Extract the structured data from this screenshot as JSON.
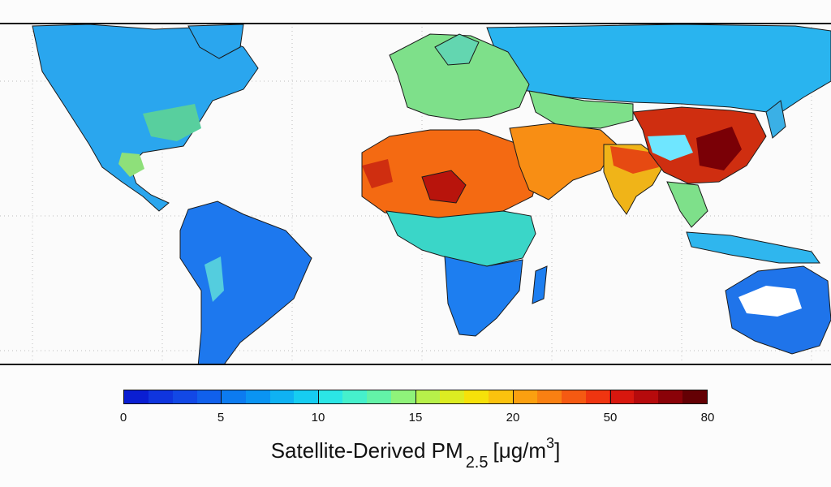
{
  "colorbar": {
    "ticks": [
      "0",
      "5",
      "10",
      "15",
      "20",
      "50",
      "80"
    ],
    "colors": [
      "#0a1ed2",
      "#0f35de",
      "#1248e6",
      "#1060ec",
      "#0c7bf0",
      "#0a94f2",
      "#0fb2f3",
      "#16cdf1",
      "#2be6e6",
      "#46f0cc",
      "#63f2a8",
      "#8ff27a",
      "#b7f04a",
      "#dcec22",
      "#f6e10a",
      "#fbc20e",
      "#fba010",
      "#f98012",
      "#f55a12",
      "#ef3510",
      "#d8170e",
      "#b60a0c",
      "#8a0208",
      "#640004"
    ],
    "title_main": "Satellite-Derived PM",
    "title_sub": "2.5",
    "title_unit_pre": "[μg/m",
    "title_unit_sup": "3",
    "title_unit_post": "]"
  },
  "map": {
    "regions": [
      {
        "name": "North America",
        "color": "#2aa6ee"
      },
      {
        "name": "South America",
        "color": "#1d78ee"
      },
      {
        "name": "Europe",
        "color": "#7ee08a"
      },
      {
        "name": "Russia",
        "color": "#29b4ef"
      },
      {
        "name": "Sahara",
        "color": "#f46a12"
      },
      {
        "name": "Sahel",
        "color": "#b8140c"
      },
      {
        "name": "Middle East",
        "color": "#f88e14"
      },
      {
        "name": "India",
        "color": "#f0b418"
      },
      {
        "name": "China",
        "color": "#cf2e10"
      },
      {
        "name": "Central Africa",
        "color": "#3ad6c8"
      },
      {
        "name": "Southern Africa",
        "color": "#1d7ef0"
      },
      {
        "name": "Australia",
        "color": "#1f74ea"
      }
    ]
  }
}
